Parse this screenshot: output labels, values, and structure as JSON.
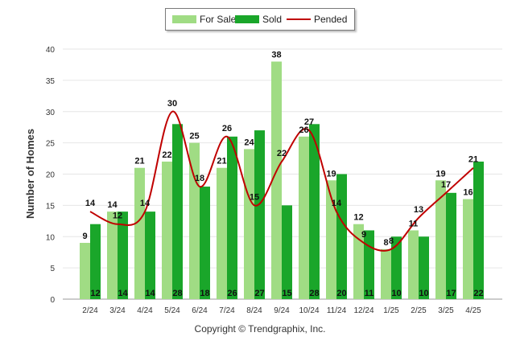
{
  "chart_data": {
    "type": "bar",
    "categories": [
      "2/24",
      "3/24",
      "4/24",
      "5/24",
      "6/24",
      "7/24",
      "8/24",
      "9/24",
      "10/24",
      "11/24",
      "12/24",
      "1/25",
      "2/25",
      "3/25",
      "4/25"
    ],
    "series": [
      {
        "name": "For Sale",
        "kind": "bar",
        "color": "#a0dc84",
        "values": [
          9,
          14,
          21,
          22,
          25,
          21,
          24,
          38,
          26,
          19,
          12,
          8,
          11,
          19,
          16
        ]
      },
      {
        "name": "Sold",
        "kind": "bar",
        "color": "#1aa62a",
        "values": [
          12,
          14,
          14,
          28,
          18,
          26,
          27,
          15,
          28,
          20,
          11,
          10,
          10,
          17,
          22
        ]
      },
      {
        "name": "Pended",
        "kind": "line",
        "color": "#c00000",
        "values": [
          14,
          12,
          14,
          30,
          18,
          26,
          15,
          22,
          27,
          14,
          9,
          8,
          13,
          17,
          21
        ]
      }
    ],
    "ylabel": "Number of Homes",
    "ylim": [
      0,
      40
    ],
    "yticks": [
      0,
      5,
      10,
      15,
      20,
      25,
      30,
      35,
      40
    ],
    "grid": true,
    "legend": "top-center"
  },
  "footer": {
    "copyright": "Copyright © Trendgraphix, Inc."
  },
  "legend_items": [
    "For Sale",
    "Sold",
    "Pended"
  ]
}
